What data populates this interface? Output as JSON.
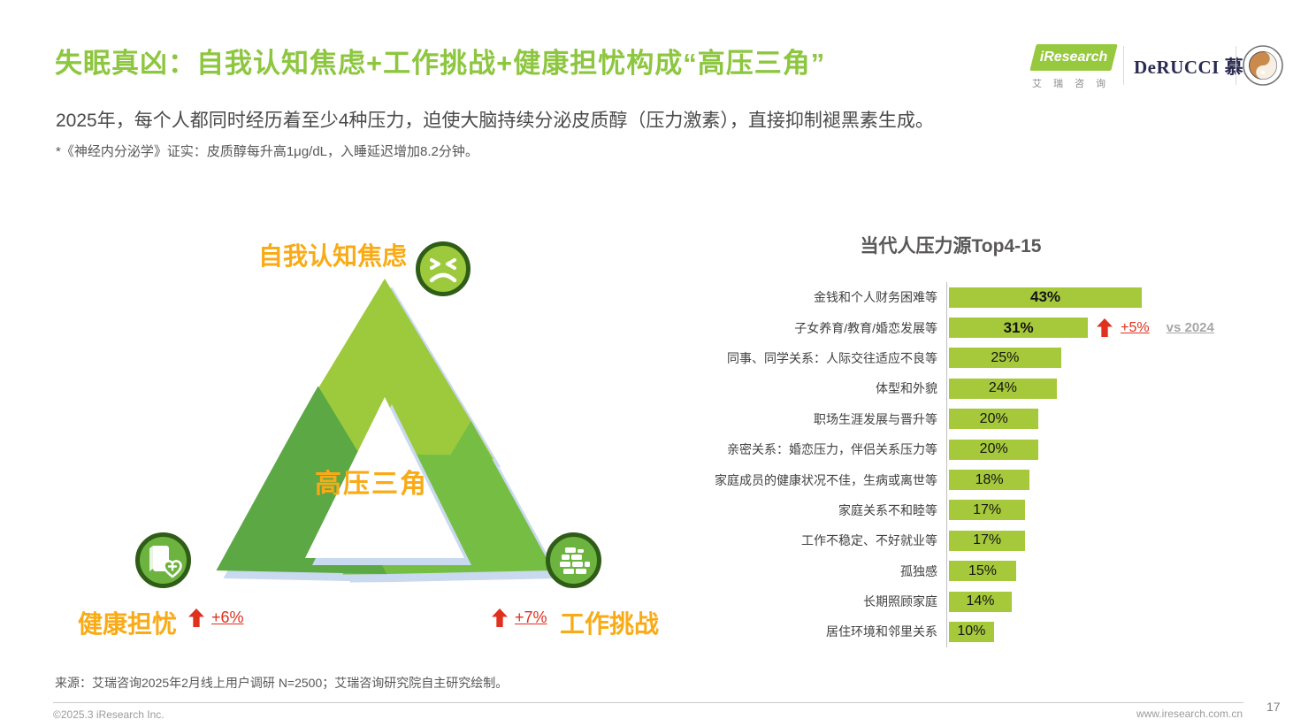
{
  "header": {
    "title": "失眠真凶：自我认知焦虑+工作挑战+健康担忧构成“高压三角”",
    "subtitle": "2025年，每个人都同时经历着至少4种压力，迫使大脑持续分泌皮质醇（压力激素），直接抑制褪黑素生成。",
    "footnote": "*《神经内分泌学》证实：皮质醇每升高1μg/dL，入睡延迟增加8.2分钟。"
  },
  "logos": {
    "iresearch_text": "iResearch",
    "iresearch_sub": "艾瑞咨询",
    "derucci_text": "DeRUCCI 慕思"
  },
  "triangle": {
    "center_label": "高压三角",
    "top": {
      "label": "自我认知焦虑",
      "icon": "frown-face-icon"
    },
    "left": {
      "label": "健康担忧",
      "change": "+6%",
      "icon": "health-book-icon"
    },
    "right": {
      "label": "工作挑战",
      "change": "+7%",
      "icon": "brick-wall-icon"
    }
  },
  "chart_data": {
    "type": "bar",
    "orientation": "horizontal",
    "title": "当代人压力源Top4-15",
    "categories": [
      "金钱和个人财务困难等",
      "子女养育/教育/婚恋发展等",
      "同事、同学关系：人际交往适应不良等",
      "体型和外貌",
      "职场生涯发展与晋升等",
      "亲密关系：婚恋压力，伴侣关系压力等",
      "家庭成员的健康状况不佳，生病或离世等",
      "家庭关系不和睦等",
      "工作不稳定、不好就业等",
      "孤独感",
      "长期照顾家庭",
      "居住环境和邻里关系"
    ],
    "values": [
      43,
      31,
      25,
      24,
      20,
      20,
      18,
      17,
      17,
      15,
      14,
      10
    ],
    "unit": "%",
    "xlim": [
      0,
      45
    ],
    "grid": false,
    "legend": "none",
    "emphasized_rows": [
      0,
      1
    ],
    "annotation": {
      "row_index": 1,
      "change": "+5%",
      "reference": "vs 2024"
    },
    "bar_color": "#A6C93C"
  },
  "footer": {
    "source": "来源：艾瑞咨询2025年2月线上用户调研 N=2500；艾瑞咨询研究院自主研究绘制。",
    "copyright": "©2025.3 iResearch Inc.",
    "website": "www.iresearch.com.cn",
    "page_number": "17"
  },
  "colors": {
    "title_green": "#8DC63F",
    "bar_green": "#A6C93C",
    "triangle_light_green": "#9CCA3C",
    "triangle_mid_green": "#76BE43",
    "triangle_dark_green": "#5BA845",
    "shadow_blue": "#C9D9EF",
    "accent_orange": "#F9AB17",
    "accent_red": "#E0301E"
  }
}
